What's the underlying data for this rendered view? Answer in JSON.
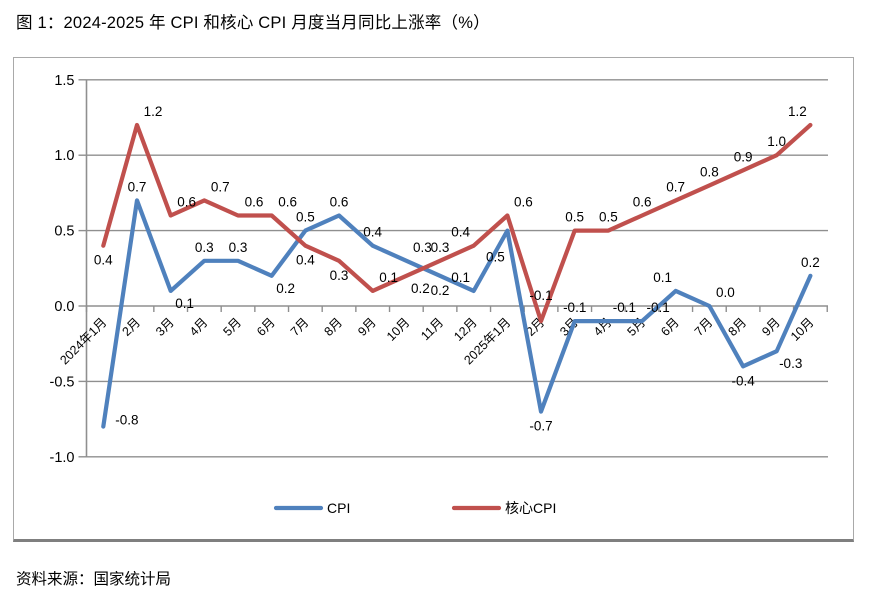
{
  "page": {
    "title": "图 1：2024-2025 年 CPI 和核心 CPI 月度当月同比上涨率（%）",
    "source": "资料来源：国家统计局"
  },
  "chart_data": {
    "type": "line",
    "title": "图 1：2024-2025 年 CPI 和核心 CPI 月度当月同比上涨率（%）",
    "categories": [
      "2024年1月",
      "2月",
      "3月",
      "4月",
      "5月",
      "6月",
      "7月",
      "8月",
      "9月",
      "10月",
      "11月",
      "12月",
      "2025年1月",
      "2月",
      "3月",
      "4月",
      "5月",
      "6月",
      "7月",
      "8月",
      "9月",
      "10月"
    ],
    "series": [
      {
        "name": "CPI",
        "color": "#4F81BD",
        "values": [
          -0.8,
          0.7,
          0.1,
          0.3,
          0.3,
          0.2,
          0.5,
          0.6,
          0.4,
          0.3,
          0.2,
          0.1,
          0.5,
          -0.7,
          -0.1,
          -0.1,
          -0.1,
          0.1,
          0.0,
          -0.4,
          -0.3,
          0.2
        ],
        "label_pos": [
          "r",
          "a",
          "br",
          "a",
          "a",
          "br",
          "a",
          "a",
          "a",
          "ar",
          "b",
          "al",
          "b2",
          "b",
          "a",
          "ar",
          "ar",
          "al",
          "ar",
          "b",
          "br",
          "a"
        ]
      },
      {
        "name": "核心CPI",
        "color": "#C0504D",
        "values": [
          0.4,
          1.2,
          0.6,
          0.7,
          0.6,
          0.6,
          0.4,
          0.3,
          0.1,
          0.2,
          0.3,
          0.4,
          0.6,
          -0.1,
          0.5,
          0.5,
          0.6,
          0.7,
          0.8,
          0.9,
          1.0,
          1.2
        ],
        "label_pos": [
          "b",
          "ar",
          "ar",
          "ar",
          "ar",
          "ar",
          "b",
          "b",
          "ar",
          "br",
          "a",
          "al",
          "ar",
          "a2",
          "a",
          "a",
          "a",
          "a",
          "a",
          "a",
          "a",
          "al"
        ]
      }
    ],
    "ylim": [
      -1.0,
      1.5
    ],
    "yticks": [
      1.5,
      1.0,
      0.5,
      0.0,
      -0.5,
      -1.0
    ],
    "ytick_labels": [
      "1.5",
      "1.0",
      "0.5",
      "0.0",
      "-0.5",
      "-1.0"
    ],
    "grid": true,
    "data_labels": true,
    "legend_position": "bottom",
    "colors": {
      "gridline": "#8f8f8f",
      "axis": "#8f8f8f",
      "label_text": "#000000"
    }
  }
}
